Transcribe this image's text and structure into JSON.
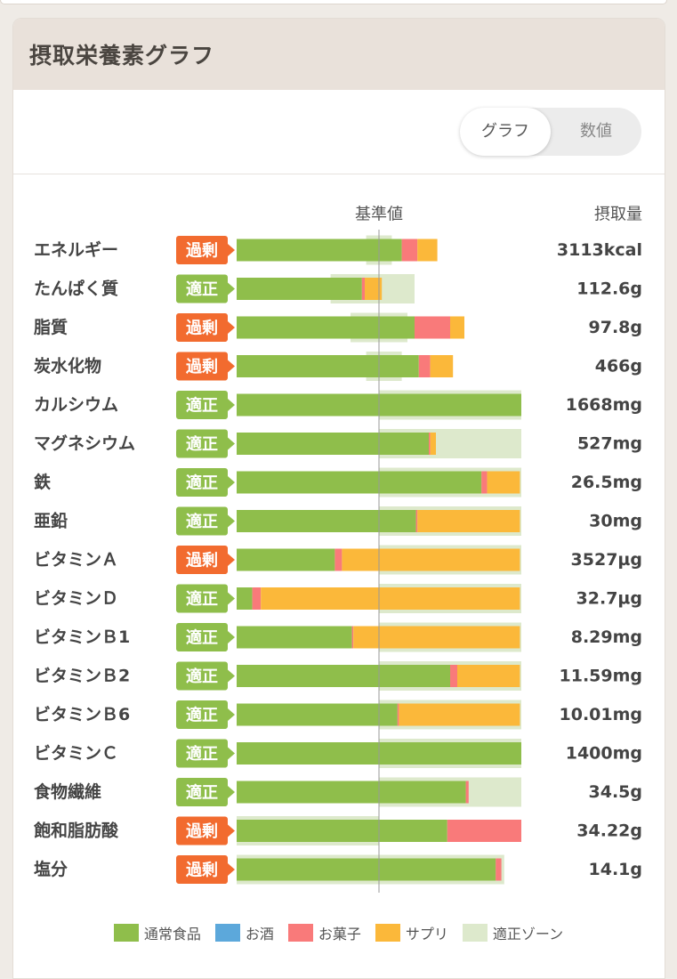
{
  "header": {
    "title": "摂取栄養素グラフ"
  },
  "toggle": {
    "graph_label": "グラフ",
    "value_label": "数値"
  },
  "colors": {
    "normal_food": "#8fbe4b",
    "alcohol": "#5ca8db",
    "snack": "#f97a7a",
    "supplement": "#fbb83a",
    "zone": "#dde9cc",
    "badge_excess": "#f26b2f",
    "badge_proper": "#8fbe4b"
  },
  "chart_data": {
    "type": "bar",
    "stacked": true,
    "value_unit": "percent_of_reference",
    "reference_label": "基準値",
    "intake_header": "摂取量",
    "axis_range": [
      0,
      200
    ],
    "legend": {
      "normal_food": "通常食品",
      "alcohol": "お酒",
      "snack": "お菓子",
      "supplement": "サプリ",
      "zone": "適正ゾーン"
    },
    "rows": [
      {
        "name": "エネルギー",
        "status": "過剰",
        "intake": "3113kcal",
        "normal": 116,
        "snack": 11,
        "supplement": 14,
        "zone": [
          91,
          109
        ]
      },
      {
        "name": "たんぱく質",
        "status": "適正",
        "intake": "112.6g",
        "normal": 88,
        "snack": 2,
        "supplement": 12,
        "zone": [
          66,
          125
        ]
      },
      {
        "name": "脂質",
        "status": "過剰",
        "intake": "97.8g",
        "normal": 125,
        "snack": 25,
        "supplement": 10,
        "zone": [
          80,
          120
        ]
      },
      {
        "name": "炭水化物",
        "status": "過剰",
        "intake": "466g",
        "normal": 128,
        "snack": 8,
        "supplement": 16,
        "zone": [
          91,
          116
        ]
      },
      {
        "name": "カルシウム",
        "status": "適正",
        "intake": "1668mg",
        "normal": 200,
        "snack": 0,
        "supplement": 0,
        "zone": [
          100,
          200
        ]
      },
      {
        "name": "マグネシウム",
        "status": "適正",
        "intake": "527mg",
        "normal": 135,
        "snack": 1,
        "supplement": 4,
        "zone": [
          100,
          200
        ]
      },
      {
        "name": "鉄",
        "status": "適正",
        "intake": "26.5mg",
        "normal": 172,
        "snack": 4,
        "supplement": 23,
        "zone": [
          100,
          200
        ]
      },
      {
        "name": "亜鉛",
        "status": "適正",
        "intake": "30mg",
        "normal": 126,
        "snack": 1,
        "supplement": 72,
        "zone": [
          100,
          200
        ]
      },
      {
        "name": "ビタミンＡ",
        "status": "過剰",
        "intake": "3527µg",
        "normal": 69,
        "snack": 5,
        "supplement": 125,
        "zone": [
          100,
          200
        ]
      },
      {
        "name": "ビタミンＤ",
        "status": "適正",
        "intake": "32.7µg",
        "normal": 11,
        "snack": 6,
        "supplement": 182,
        "zone": [
          100,
          200
        ]
      },
      {
        "name": "ビタミンＢ1",
        "status": "適正",
        "intake": "8.29mg",
        "normal": 81,
        "snack": 1,
        "supplement": 117,
        "zone": [
          100,
          200
        ]
      },
      {
        "name": "ビタミンＢ2",
        "status": "適正",
        "intake": "11.59mg",
        "normal": 150,
        "snack": 5,
        "supplement": 44,
        "zone": [
          100,
          200
        ]
      },
      {
        "name": "ビタミンＢ6",
        "status": "適正",
        "intake": "10.01mg",
        "normal": 113,
        "snack": 1,
        "supplement": 85,
        "zone": [
          100,
          200
        ]
      },
      {
        "name": "ビタミンＣ",
        "status": "適正",
        "intake": "1400mg",
        "normal": 200,
        "snack": 0,
        "supplement": 0,
        "zone": [
          100,
          200
        ]
      },
      {
        "name": "食物繊維",
        "status": "適正",
        "intake": "34.5g",
        "normal": 161,
        "snack": 2,
        "supplement": 0,
        "zone": [
          100,
          200
        ]
      },
      {
        "name": "飽和脂肪酸",
        "status": "過剰",
        "intake": "34.22g",
        "normal": 148,
        "snack": 52,
        "supplement": 0,
        "zone": [
          0,
          100
        ]
      },
      {
        "name": "塩分",
        "status": "過剰",
        "intake": "14.1g",
        "normal": 182,
        "snack": 4,
        "supplement": 0,
        "zone": [
          0,
          188
        ]
      }
    ]
  }
}
